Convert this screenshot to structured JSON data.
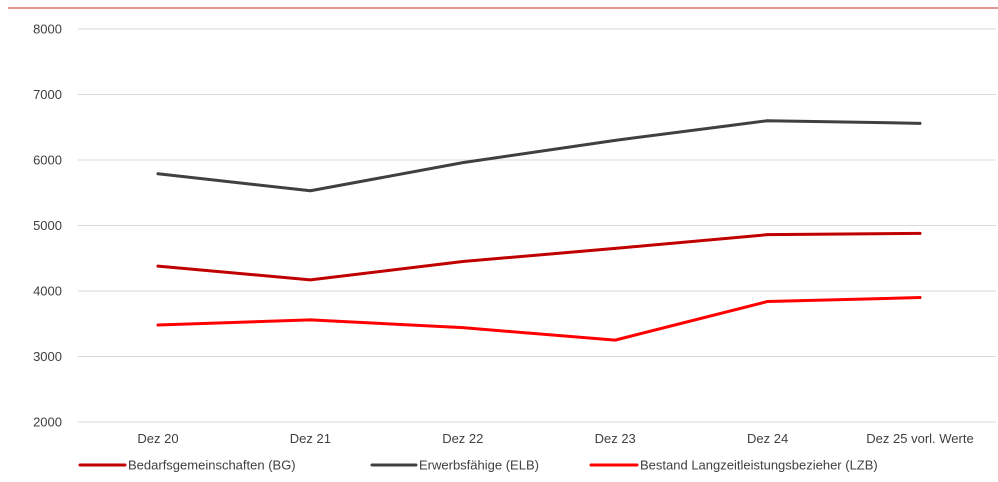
{
  "chart_data": {
    "type": "line",
    "title": "",
    "xlabel": "",
    "ylabel": "",
    "categories": [
      "Dez 20",
      "Dez 21",
      "Dez 22",
      "Dez 23",
      "Dez 24",
      "Dez 25 vorl. Werte"
    ],
    "y_ticks": [
      "2000",
      "3000",
      "4000",
      "5000",
      "6000",
      "7000",
      "8000"
    ],
    "ylim": [
      2000,
      8000
    ],
    "grid": "horizontal",
    "legend_position": "bottom",
    "series": [
      {
        "name": "Bedarfsgemeinschaften (BG)",
        "color": "#c00000",
        "values": [
          4380,
          4170,
          4450,
          4650,
          4860,
          4880
        ]
      },
      {
        "name": "Erwerbsfähige (ELB)",
        "color": "#404040",
        "values": [
          5790,
          5530,
          5960,
          6300,
          6600,
          6560
        ]
      },
      {
        "name": "Bestand Langzeitleistungsbezieher (LZB)",
        "color": "#ff0000",
        "values": [
          3480,
          3560,
          3440,
          3250,
          3840,
          3900
        ]
      }
    ]
  },
  "colors": {
    "top_rule": "#d9534f",
    "gridline": "#d9d9d9",
    "text": "#404040"
  }
}
